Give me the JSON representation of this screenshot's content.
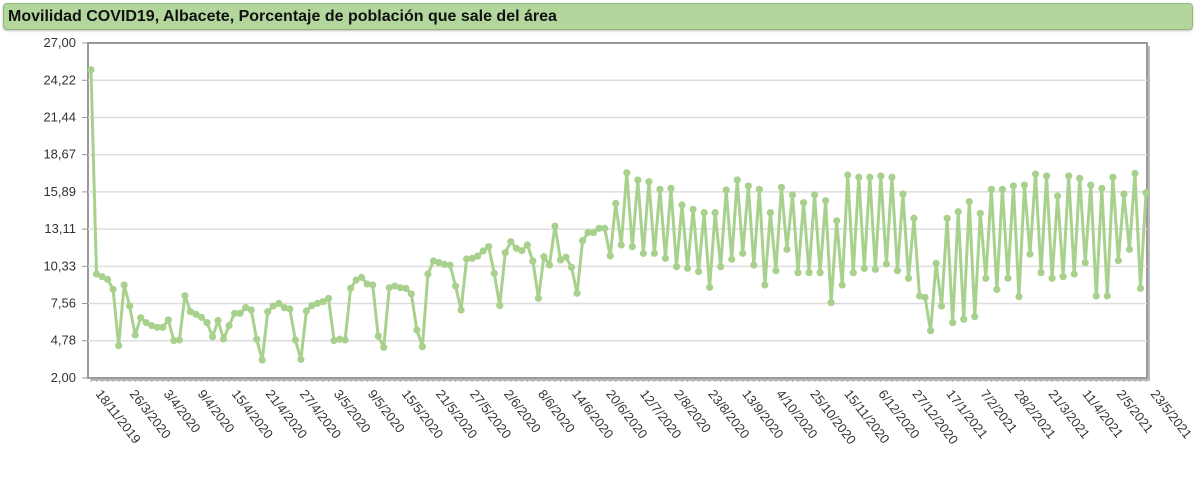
{
  "chart_data": {
    "type": "line",
    "title": "Movilidad COVID19, Albacete, Porcentaje de población que sale del área",
    "xlabel": "",
    "ylabel": "",
    "ylim": [
      2,
      27
    ],
    "y_ticks": [
      "27,00",
      "24,22",
      "21,44",
      "18,67",
      "15,89",
      "13,11",
      "10,33",
      "7,56",
      "4,78",
      "2,00"
    ],
    "y_tick_values": [
      27,
      24.22,
      21.44,
      18.67,
      15.89,
      13.11,
      10.33,
      7.56,
      4.78,
      2
    ],
    "x_tick_labels": [
      "18/11/2019",
      "26/3/2020",
      "3/4/2020",
      "9/4/2020",
      "15/4/2020",
      "21/4/2020",
      "27/4/2020",
      "3/5/2020",
      "9/5/2020",
      "15/5/2020",
      "21/5/2020",
      "27/5/2020",
      "2/6/2020",
      "8/6/2020",
      "14/6/2020",
      "20/6/2020",
      "12/7/2020",
      "2/8/2020",
      "23/8/2020",
      "13/9/2020",
      "4/10/2020",
      "25/10/2020",
      "15/11/2020",
      "6/12/2020",
      "27/12/2020",
      "17/1/2021",
      "7/2/2021",
      "28/2/2021",
      "21/3/2021",
      "11/4/2021",
      "2/5/2021",
      "23/5/2021"
    ],
    "grid": true,
    "legend": "none",
    "line_color": "#a9d18e",
    "values": [
      25.0,
      9.76,
      9.56,
      9.36,
      8.62,
      4.41,
      8.94,
      7.37,
      5.21,
      6.5,
      6.13,
      5.91,
      5.78,
      5.78,
      6.33,
      4.79,
      4.84,
      8.14,
      6.95,
      6.75,
      6.53,
      6.13,
      5.08,
      6.28,
      4.91,
      5.91,
      6.83,
      6.83,
      7.25,
      7.08,
      4.89,
      3.34,
      6.95,
      7.37,
      7.57,
      7.25,
      7.15,
      4.84,
      3.39,
      7.0,
      7.4,
      7.57,
      7.7,
      7.94,
      4.79,
      4.89,
      4.84,
      8.69,
      9.31,
      9.51,
      9.01,
      8.94,
      5.13,
      4.29,
      8.74,
      8.86,
      8.74,
      8.69,
      8.27,
      5.58,
      4.34,
      9.76,
      10.73,
      10.61,
      10.48,
      10.43,
      8.86,
      7.07,
      10.88,
      10.93,
      11.1,
      11.48,
      11.8,
      9.81,
      7.4,
      11.35,
      12.17,
      11.68,
      11.5,
      11.93,
      10.73,
      7.95,
      11.05,
      10.43,
      13.34,
      10.81,
      11.01,
      10.26,
      8.32,
      12.25,
      12.85,
      12.85,
      13.17,
      13.17,
      11.11,
      15.03,
      11.93,
      17.32,
      11.8,
      16.78,
      11.3,
      16.65,
      11.3,
      16.08,
      10.93,
      16.15,
      10.31,
      14.91,
      10.18,
      14.59,
      9.94,
      14.34,
      8.77,
      14.34,
      10.31,
      16.03,
      10.86,
      16.78,
      11.3,
      16.33,
      10.43,
      16.08,
      8.94,
      14.34,
      10.01,
      16.23,
      11.6,
      15.66,
      9.86,
      15.08,
      9.86,
      15.66,
      9.86,
      15.23,
      7.62,
      13.74,
      8.94,
      17.15,
      9.86,
      16.98,
      10.18,
      16.98,
      10.11,
      17.08,
      10.51,
      16.98,
      10.01,
      15.73,
      9.44,
      13.92,
      8.12,
      8.02,
      5.53,
      10.56,
      7.37,
      13.92,
      6.13,
      14.41,
      6.38,
      15.16,
      6.58,
      14.29,
      9.44,
      16.08,
      8.61,
      16.08,
      9.44,
      16.33,
      8.07,
      16.4,
      11.25,
      17.22,
      9.86,
      17.08,
      9.44,
      15.58,
      9.56,
      17.08,
      9.76,
      16.9,
      10.61,
      16.4,
      8.12,
      16.15,
      8.12,
      16.98,
      10.76,
      15.73,
      11.6,
      17.27,
      8.69,
      15.83
    ]
  }
}
